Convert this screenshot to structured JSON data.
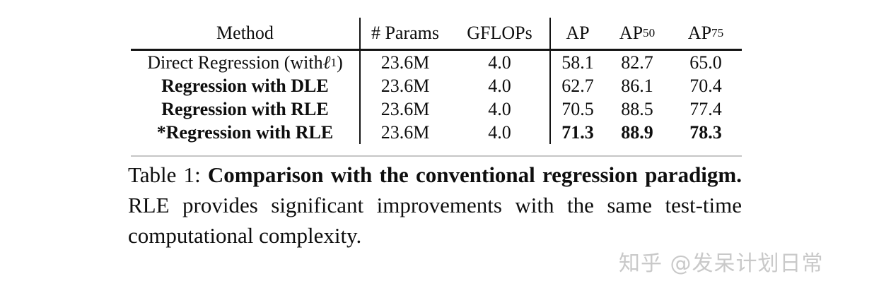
{
  "table": {
    "headers": {
      "method": "Method",
      "params": "# Params",
      "gflops": "GFLOPs",
      "ap": "AP",
      "ap50_base": "AP",
      "ap50_sub": "50",
      "ap75_base": "AP",
      "ap75_sub": "75"
    },
    "rows": [
      {
        "method_prefix": "Direct Regression (with ",
        "ell": "ℓ",
        "ell_sub": "1",
        "method_suffix": ")",
        "params": "23.6M",
        "gflops": "4.0",
        "ap": "58.1",
        "ap50": "82.7",
        "ap75": "65.0"
      },
      {
        "method": "Regression with DLE",
        "params": "23.6M",
        "gflops": "4.0",
        "ap": "62.7",
        "ap50": "86.1",
        "ap75": "70.4"
      },
      {
        "method": "Regression with RLE",
        "params": "23.6M",
        "gflops": "4.0",
        "ap": "70.5",
        "ap50": "88.5",
        "ap75": "77.4"
      },
      {
        "method": "*Regression with RLE",
        "params": "23.6M",
        "gflops": "4.0",
        "ap": "71.3",
        "ap50": "88.9",
        "ap75": "78.3"
      }
    ]
  },
  "caption": {
    "label": "Table 1: ",
    "title_bold": "Comparison with the conventional regression paradigm.",
    "body": " RLE provides significant improvements with the same test-time computational complexity."
  },
  "watermark": {
    "text": "知乎 @发呆计划日常"
  },
  "colors": {
    "background": "#ffffff",
    "text": "#0e0e0e",
    "rule_dark": "#141414",
    "rule_light": "#c6c6c6",
    "watermark": "#c9c9c9"
  }
}
